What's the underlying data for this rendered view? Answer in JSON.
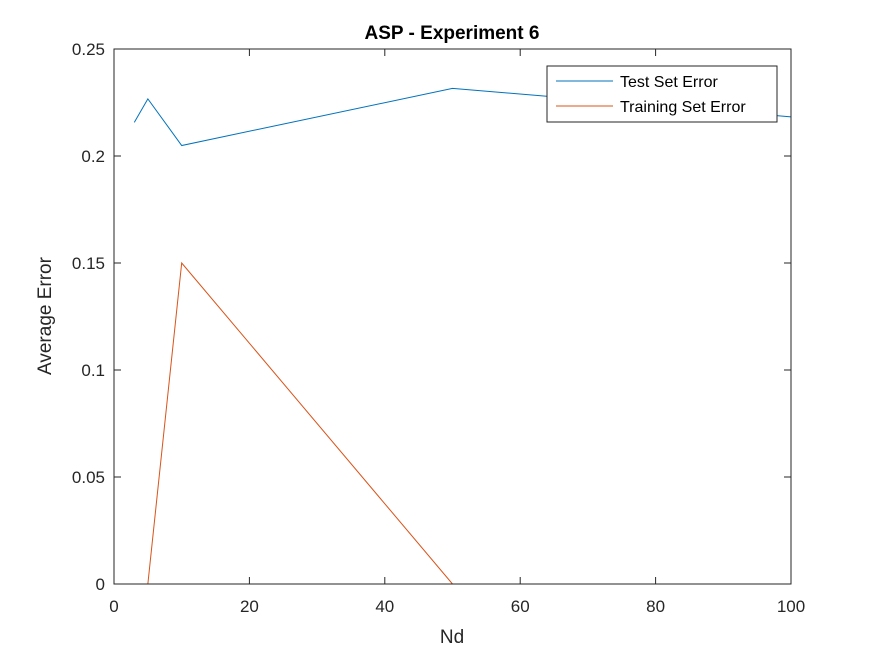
{
  "chart_data": {
    "type": "line",
    "title": "ASP - Experiment 6",
    "xlabel": "Nd",
    "ylabel": "Average Error",
    "xlim": [
      0,
      100
    ],
    "ylim": [
      0,
      0.25
    ],
    "xticks": [
      0,
      20,
      40,
      60,
      80,
      100
    ],
    "xtick_labels": [
      "0",
      "20",
      "40",
      "60",
      "80",
      "100"
    ],
    "yticks": [
      0,
      0.05,
      0.1,
      0.15,
      0.2,
      0.25
    ],
    "ytick_labels": [
      "0",
      "0.05",
      "0.1",
      "0.15",
      "0.2",
      "0.25"
    ],
    "grid": false,
    "legend_position": "top-right",
    "series": [
      {
        "name": "Test Set Error",
        "color": "#0072BD",
        "x": [
          3,
          5,
          10,
          50,
          100
        ],
        "y": [
          0.2157,
          0.2267,
          0.2049,
          0.2316,
          0.2183
        ]
      },
      {
        "name": "Training Set Error",
        "color": "#D95319",
        "x": [
          3,
          5,
          10,
          50,
          100
        ],
        "y": [
          0,
          0,
          0.15,
          0,
          0
        ]
      }
    ]
  }
}
